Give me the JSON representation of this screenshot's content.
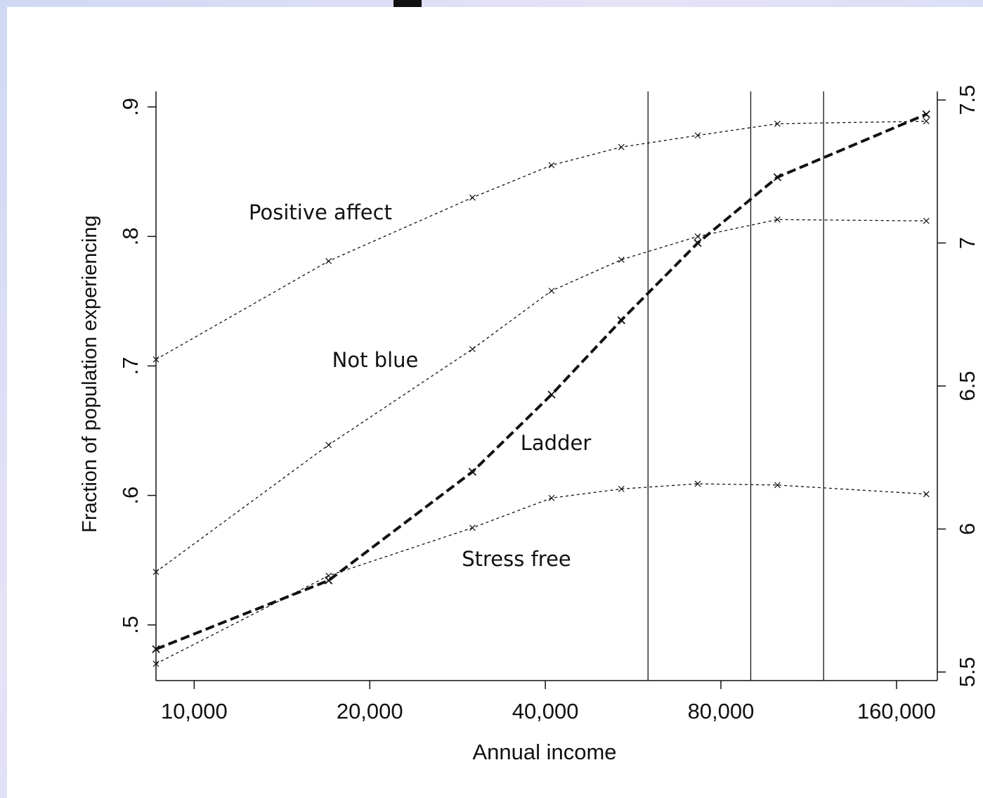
{
  "chart_data": {
    "type": "line",
    "xlabel": "Annual income",
    "ylabel": "Fraction of population experiencing",
    "x_scale": "log",
    "x_ticks": [
      "10,000",
      "20,000",
      "40,000",
      "80,000",
      "160,000"
    ],
    "x_tick_values": [
      10000,
      20000,
      40000,
      80000,
      160000
    ],
    "xlim": [
      8600,
      188000
    ],
    "y_left_ticks": [
      ".5",
      ".6",
      ".7",
      ".8",
      ".9"
    ],
    "y_left_tick_values": [
      0.5,
      0.6,
      0.7,
      0.8,
      0.9
    ],
    "ylim_left": [
      0.457,
      0.912
    ],
    "y_right_ticks": [
      "5.5",
      "6",
      "6.5",
      "7",
      "7.5"
    ],
    "y_right_tick_values": [
      5.5,
      6.0,
      6.5,
      7.0,
      7.5
    ],
    "ylim_right": [
      5.47,
      7.53
    ],
    "vertical_lines": [
      60000,
      90000,
      120000
    ],
    "series": [
      {
        "name": "Positive affect",
        "axis": "left",
        "style": "dotted",
        "x": [
          8600,
          17000,
          30000,
          41000,
          54000,
          73000,
          100000,
          180000
        ],
        "y": [
          0.705,
          0.781,
          0.83,
          0.855,
          0.869,
          0.878,
          0.887,
          0.889
        ]
      },
      {
        "name": "Not blue",
        "axis": "left",
        "style": "dotted",
        "x": [
          8600,
          17000,
          30000,
          41000,
          54000,
          73000,
          100000,
          180000
        ],
        "y": [
          0.541,
          0.639,
          0.713,
          0.758,
          0.782,
          0.8,
          0.813,
          0.812
        ]
      },
      {
        "name": "Stress free",
        "axis": "left",
        "style": "dotted",
        "x": [
          8600,
          17000,
          30000,
          41000,
          54000,
          73000,
          100000,
          180000
        ],
        "y": [
          0.47,
          0.538,
          0.575,
          0.598,
          0.605,
          0.609,
          0.608,
          0.601
        ]
      },
      {
        "name": "Ladder",
        "axis": "right",
        "style": "dashed-bold",
        "x": [
          8600,
          17000,
          30000,
          41000,
          54000,
          73000,
          100000,
          180000
        ],
        "y": [
          5.58,
          5.82,
          6.2,
          6.47,
          6.73,
          7.0,
          7.23,
          7.45
        ]
      }
    ]
  }
}
